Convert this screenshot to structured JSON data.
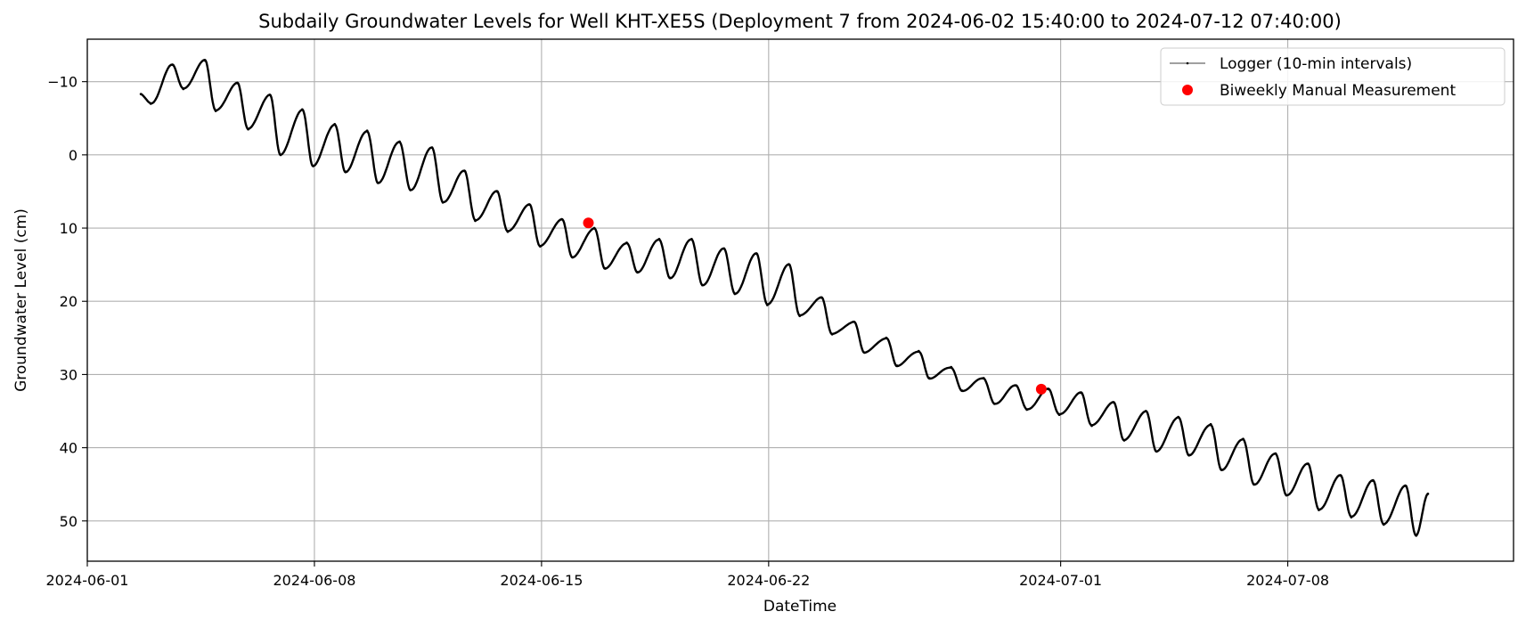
{
  "chart_data": {
    "type": "line",
    "title": "Subdaily Groundwater Levels for Well KHT-XE5S (Deployment 7 from 2024-06-02 15:40:00 to 2024-07-12 07:40:00)",
    "xlabel": "DateTime",
    "ylabel": "Groundwater Level (cm)",
    "y_inverted": true,
    "xlim": [
      "2024-06-01T00:00:00",
      "2024-07-14T23:00:00"
    ],
    "ylim": [
      -15.8,
      55.5
    ],
    "x_ticks": [
      "2024-06-01",
      "2024-06-08",
      "2024-06-15",
      "2024-06-22",
      "2024-07-01",
      "2024-07-08"
    ],
    "y_ticks": [
      -10,
      0,
      10,
      20,
      30,
      40,
      50
    ],
    "y_tick_labels": [
      "−10",
      "0",
      "10",
      "20",
      "30",
      "40",
      "50"
    ],
    "grid": true,
    "legend_position": "top-right",
    "series": [
      {
        "name": "Logger (10-min intervals)",
        "kind": "line",
        "color": "#000000",
        "interval_minutes": 10,
        "x": [
          "2024-06-02T15:40:00",
          "2024-06-02T23:00:00",
          "2024-06-03T15:00:00",
          "2024-06-03T23:00:00",
          "2024-06-04T15:00:00",
          "2024-06-04T23:00:00",
          "2024-06-05T15:00:00",
          "2024-06-05T23:00:00",
          "2024-06-06T15:00:00",
          "2024-06-06T23:00:00",
          "2024-06-07T15:00:00",
          "2024-06-07T23:00:00",
          "2024-06-08T15:00:00",
          "2024-06-08T23:00:00",
          "2024-06-09T15:00:00",
          "2024-06-09T23:00:00",
          "2024-06-10T15:00:00",
          "2024-06-10T23:00:00",
          "2024-06-11T15:00:00",
          "2024-06-11T23:00:00",
          "2024-06-12T15:00:00",
          "2024-06-12T23:00:00",
          "2024-06-13T15:00:00",
          "2024-06-13T23:00:00",
          "2024-06-14T15:00:00",
          "2024-06-14T23:00:00",
          "2024-06-15T15:00:00",
          "2024-06-15T23:00:00",
          "2024-06-16T15:00:00",
          "2024-06-16T23:00:00",
          "2024-06-17T15:00:00",
          "2024-06-17T23:00:00",
          "2024-06-18T15:00:00",
          "2024-06-18T23:00:00",
          "2024-06-19T15:00:00",
          "2024-06-19T23:00:00",
          "2024-06-20T15:00:00",
          "2024-06-20T23:00:00",
          "2024-06-21T15:00:00",
          "2024-06-21T23:00:00",
          "2024-06-22T15:00:00",
          "2024-06-22T23:00:00",
          "2024-06-23T15:00:00",
          "2024-06-23T23:00:00",
          "2024-06-24T15:00:00",
          "2024-06-24T23:00:00",
          "2024-06-25T15:00:00",
          "2024-06-25T23:00:00",
          "2024-06-26T15:00:00",
          "2024-06-26T23:00:00",
          "2024-06-27T15:00:00",
          "2024-06-27T23:00:00",
          "2024-06-28T15:00:00",
          "2024-06-28T23:00:00",
          "2024-06-29T15:00:00",
          "2024-06-29T23:00:00",
          "2024-06-30T15:00:00",
          "2024-06-30T23:00:00",
          "2024-07-01T15:00:00",
          "2024-07-01T23:00:00",
          "2024-07-02T15:00:00",
          "2024-07-02T23:00:00",
          "2024-07-03T15:00:00",
          "2024-07-03T23:00:00",
          "2024-07-04T15:00:00",
          "2024-07-04T23:00:00",
          "2024-07-05T15:00:00",
          "2024-07-05T23:00:00",
          "2024-07-06T15:00:00",
          "2024-07-06T23:00:00",
          "2024-07-07T15:00:00",
          "2024-07-07T23:00:00",
          "2024-07-08T15:00:00",
          "2024-07-08T23:00:00",
          "2024-07-09T15:00:00",
          "2024-07-09T23:00:00",
          "2024-07-10T15:00:00",
          "2024-07-10T23:00:00",
          "2024-07-11T15:00:00",
          "2024-07-11T23:00:00",
          "2024-07-12T07:40:00"
        ],
        "y": [
          -8.3,
          -7.0,
          -12.3,
          -9.0,
          -12.9,
          -6.0,
          -9.8,
          -3.5,
          -8.2,
          0.0,
          -6.2,
          1.5,
          -4.2,
          2.3,
          -3.3,
          3.8,
          -1.8,
          4.8,
          -1.0,
          6.5,
          2.2,
          9.0,
          5.0,
          10.5,
          6.8,
          12.5,
          8.8,
          14.0,
          10.0,
          15.5,
          12.0,
          16.0,
          11.5,
          16.8,
          11.5,
          17.8,
          12.8,
          19.0,
          13.5,
          20.5,
          15.0,
          22.0,
          19.5,
          24.5,
          22.8,
          27.0,
          25.0,
          28.8,
          26.8,
          30.5,
          29.0,
          32.2,
          30.5,
          34.0,
          31.5,
          34.8,
          32.0,
          35.5,
          32.5,
          37.0,
          33.8,
          39.0,
          35.0,
          40.5,
          35.8,
          41.0,
          36.8,
          43.0,
          38.8,
          45.0,
          40.8,
          46.5,
          42.2,
          48.5,
          43.8,
          49.5,
          44.5,
          50.5,
          45.2,
          52.0,
          46.3
        ]
      },
      {
        "name": "Biweekly Manual Measurement",
        "kind": "scatter",
        "color": "#ff0000",
        "x": [
          "2024-06-16T10:40:00",
          "2024-06-30T09:40:00"
        ],
        "y": [
          9.3,
          32.0
        ]
      }
    ]
  }
}
